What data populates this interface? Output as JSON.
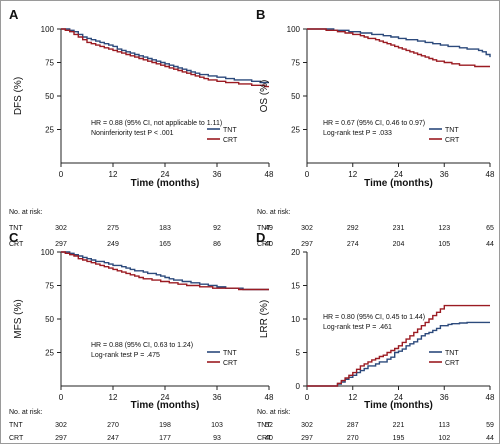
{
  "palette": {
    "tnt": "#2c4a7c",
    "crt": "#9b1b22",
    "axis": "#222222",
    "frame": "#9a9a9a"
  },
  "risk_header": "No. at risk:",
  "legend_labels": [
    "TNT",
    "CRT"
  ],
  "chart_data": [
    {
      "type": "line",
      "panel": "A",
      "ylabel": "DFS (%)",
      "xlabel": "Time (months)",
      "xlim": [
        0,
        48
      ],
      "ylim": [
        0,
        100
      ],
      "x_ticks": [
        "0",
        "12",
        "24",
        "36",
        "48"
      ],
      "y_ticks": [
        "25",
        "50",
        "75",
        "100"
      ],
      "annotations": [
        "HR = 0.88 (95% CI, not applicable to 1.11)",
        "Noninferiority test P < .001"
      ],
      "legend": "bottom-right",
      "series": [
        {
          "name": "TNT",
          "x": [
            0,
            1,
            2,
            3,
            4,
            5,
            6,
            7,
            8,
            9,
            10,
            11,
            12,
            13,
            14,
            15,
            16,
            17,
            18,
            19,
            20,
            21,
            22,
            23,
            24,
            25,
            26,
            27,
            28,
            29,
            30,
            31,
            32,
            33,
            34,
            35,
            36,
            37,
            38,
            39,
            40,
            41,
            42,
            43,
            44,
            45,
            46,
            47,
            48
          ],
          "y": [
            100,
            100,
            99,
            98,
            96,
            94,
            93,
            92,
            91,
            90,
            89,
            88,
            87,
            85,
            84,
            83,
            82,
            81,
            80,
            79,
            78,
            77,
            76,
            75,
            74,
            73,
            72,
            71,
            70,
            69,
            68,
            67,
            66,
            66,
            65,
            65,
            64,
            64,
            63,
            63,
            62,
            62,
            62,
            62,
            61,
            61,
            60,
            60,
            60
          ]
        },
        {
          "name": "CRT",
          "x": [
            0,
            1,
            2,
            3,
            4,
            5,
            6,
            7,
            8,
            9,
            10,
            11,
            12,
            13,
            14,
            15,
            16,
            17,
            18,
            19,
            20,
            21,
            22,
            23,
            24,
            25,
            26,
            27,
            28,
            29,
            30,
            31,
            32,
            33,
            34,
            35,
            36,
            37,
            38,
            39,
            40,
            41,
            42,
            43,
            44,
            45,
            46,
            47,
            48
          ],
          "y": [
            100,
            99,
            98,
            96,
            94,
            92,
            90,
            89,
            88,
            87,
            86,
            85,
            84,
            83,
            82,
            81,
            80,
            79,
            78,
            77,
            76,
            75,
            74,
            73,
            72,
            71,
            70,
            69,
            68,
            67,
            66,
            65,
            64,
            63,
            62,
            62,
            61,
            61,
            60,
            60,
            60,
            59,
            59,
            59,
            58,
            58,
            58,
            57,
            57
          ]
        }
      ],
      "risk": [
        {
          "group": "TNT",
          "values": [
            "302",
            "275",
            "183",
            "92",
            "49"
          ]
        },
        {
          "group": "CRT",
          "values": [
            "297",
            "249",
            "165",
            "86",
            "40"
          ]
        }
      ]
    },
    {
      "type": "line",
      "panel": "B",
      "ylabel": "OS (%)",
      "xlabel": "Time (months)",
      "xlim": [
        0,
        48
      ],
      "ylim": [
        0,
        100
      ],
      "x_ticks": [
        "0",
        "12",
        "24",
        "36",
        "48"
      ],
      "y_ticks": [
        "25",
        "50",
        "75",
        "100"
      ],
      "annotations": [
        "HR = 0.67 (95% CI, 0.46 to 0.97)",
        "Log-rank test P = .033"
      ],
      "legend": "bottom-right",
      "series": [
        {
          "name": "TNT",
          "x": [
            0,
            1,
            2,
            3,
            4,
            5,
            6,
            7,
            8,
            9,
            10,
            11,
            12,
            13,
            14,
            15,
            16,
            17,
            18,
            19,
            20,
            21,
            22,
            23,
            24,
            25,
            26,
            27,
            28,
            29,
            30,
            31,
            32,
            33,
            34,
            35,
            36,
            37,
            38,
            39,
            40,
            41,
            42,
            43,
            44,
            45,
            46,
            47,
            48
          ],
          "y": [
            100,
            100,
            100,
            100,
            100,
            100,
            100,
            99,
            99,
            99,
            99,
            98,
            98,
            98,
            97,
            97,
            97,
            96,
            96,
            96,
            95,
            95,
            94,
            94,
            93,
            93,
            92,
            92,
            92,
            91,
            91,
            90,
            90,
            89,
            89,
            88,
            88,
            87,
            87,
            87,
            86,
            86,
            85,
            85,
            85,
            84,
            83,
            81,
            79
          ]
        },
        {
          "name": "CRT",
          "x": [
            0,
            1,
            2,
            3,
            4,
            5,
            6,
            7,
            8,
            9,
            10,
            11,
            12,
            13,
            14,
            15,
            16,
            17,
            18,
            19,
            20,
            21,
            22,
            23,
            24,
            25,
            26,
            27,
            28,
            29,
            30,
            31,
            32,
            33,
            34,
            35,
            36,
            37,
            38,
            39,
            40,
            41,
            42,
            43,
            44,
            45,
            46,
            47,
            48
          ],
          "y": [
            100,
            100,
            100,
            100,
            100,
            99,
            99,
            99,
            98,
            98,
            97,
            97,
            96,
            96,
            95,
            94,
            93,
            93,
            92,
            91,
            90,
            89,
            88,
            87,
            86,
            85,
            84,
            83,
            82,
            81,
            80,
            79,
            78,
            77,
            76,
            76,
            75,
            75,
            74,
            74,
            73,
            73,
            73,
            73,
            72,
            72,
            72,
            72,
            72
          ]
        }
      ],
      "risk": [
        {
          "group": "TNT",
          "values": [
            "302",
            "292",
            "231",
            "123",
            "65"
          ]
        },
        {
          "group": "CRT",
          "values": [
            "297",
            "274",
            "204",
            "105",
            "44"
          ]
        }
      ]
    },
    {
      "type": "line",
      "panel": "C",
      "ylabel": "MFS (%)",
      "xlabel": "Time (months)",
      "xlim": [
        0,
        48
      ],
      "ylim": [
        0,
        100
      ],
      "x_ticks": [
        "0",
        "12",
        "24",
        "36",
        "48"
      ],
      "y_ticks": [
        "25",
        "50",
        "75",
        "100"
      ],
      "annotations": [
        "HR = 0.88 (95% CI, 0.63 to 1.24)",
        "Log-rank test P = .475"
      ],
      "legend": "bottom-right",
      "series": [
        {
          "name": "TNT",
          "x": [
            0,
            1,
            2,
            3,
            4,
            5,
            6,
            7,
            8,
            9,
            10,
            11,
            12,
            13,
            14,
            15,
            16,
            17,
            18,
            19,
            20,
            21,
            22,
            23,
            24,
            25,
            26,
            27,
            28,
            29,
            30,
            31,
            32,
            33,
            34,
            35,
            36,
            37,
            38,
            39,
            40,
            41,
            42,
            43,
            44,
            45,
            46,
            47,
            48
          ],
          "y": [
            100,
            100,
            99,
            98,
            97,
            96,
            95,
            94,
            93,
            93,
            92,
            91,
            90,
            90,
            89,
            88,
            87,
            86,
            86,
            85,
            84,
            84,
            83,
            82,
            81,
            80,
            79,
            79,
            78,
            78,
            77,
            77,
            76,
            76,
            75,
            75,
            74,
            74,
            73,
            73,
            73,
            73,
            72,
            72,
            72,
            72,
            72,
            72,
            72
          ]
        },
        {
          "name": "CRT",
          "x": [
            0,
            1,
            2,
            3,
            4,
            5,
            6,
            7,
            8,
            9,
            10,
            11,
            12,
            13,
            14,
            15,
            16,
            17,
            18,
            19,
            20,
            21,
            22,
            23,
            24,
            25,
            26,
            27,
            28,
            29,
            30,
            31,
            32,
            33,
            34,
            35,
            36,
            37,
            38,
            39,
            40,
            41,
            42,
            43,
            44,
            45,
            46,
            47,
            48
          ],
          "y": [
            100,
            99,
            98,
            97,
            95,
            94,
            93,
            92,
            91,
            90,
            89,
            88,
            87,
            86,
            85,
            84,
            83,
            82,
            81,
            80,
            80,
            79,
            79,
            78,
            78,
            77,
            77,
            76,
            76,
            75,
            75,
            75,
            74,
            74,
            74,
            73,
            73,
            73,
            73,
            73,
            73,
            72,
            72,
            72,
            72,
            72,
            72,
            72,
            72
          ]
        }
      ],
      "risk": [
        {
          "group": "TNT",
          "values": [
            "302",
            "270",
            "198",
            "103",
            "52"
          ]
        },
        {
          "group": "CRT",
          "values": [
            "297",
            "247",
            "177",
            "93",
            "40"
          ]
        }
      ]
    },
    {
      "type": "line",
      "panel": "D",
      "ylabel": "LRR (%)",
      "xlabel": "Time (months)",
      "xlim": [
        0,
        48
      ],
      "ylim": [
        0,
        20
      ],
      "x_ticks": [
        "0",
        "12",
        "24",
        "36",
        "48"
      ],
      "y_ticks": [
        "0",
        "5",
        "10",
        "15",
        "20"
      ],
      "annotations": [
        "HR = 0.80 (95% CI, 0.45 to 1.44)",
        "Log-rank test P = .461"
      ],
      "legend": "bottom-right",
      "series": [
        {
          "name": "TNT",
          "x": [
            0,
            1,
            2,
            3,
            4,
            5,
            6,
            7,
            8,
            9,
            10,
            11,
            12,
            13,
            14,
            15,
            16,
            17,
            18,
            19,
            20,
            21,
            22,
            23,
            24,
            25,
            26,
            27,
            28,
            29,
            30,
            31,
            32,
            33,
            34,
            35,
            36,
            37,
            38,
            39,
            40,
            41,
            42,
            43,
            44,
            45,
            46,
            47,
            48
          ],
          "y": [
            0,
            0,
            0,
            0,
            0,
            0,
            0,
            0,
            0.3,
            0.6,
            1.0,
            1.3,
            1.6,
            2.0,
            2.3,
            2.6,
            3.0,
            3.0,
            3.3,
            3.6,
            3.6,
            4.0,
            4.3,
            5.0,
            5.2,
            5.5,
            6.0,
            6.3,
            6.6,
            7.0,
            7.5,
            7.8,
            8.0,
            8.3,
            8.6,
            9.0,
            9.0,
            9.2,
            9.3,
            9.3,
            9.4,
            9.4,
            9.5,
            9.5,
            9.5,
            9.5,
            9.5,
            9.5,
            9.5
          ]
        },
        {
          "name": "CRT",
          "x": [
            0,
            1,
            2,
            3,
            4,
            5,
            6,
            7,
            8,
            9,
            10,
            11,
            12,
            13,
            14,
            15,
            16,
            17,
            18,
            19,
            20,
            21,
            22,
            23,
            24,
            25,
            26,
            27,
            28,
            29,
            30,
            31,
            32,
            33,
            34,
            35,
            36,
            37,
            38,
            39,
            40,
            41,
            42,
            43,
            44,
            45,
            46,
            47,
            48
          ],
          "y": [
            0,
            0,
            0,
            0,
            0,
            0,
            0,
            0,
            0.4,
            0.8,
            1.2,
            1.6,
            2.0,
            2.5,
            3.0,
            3.3,
            3.6,
            3.9,
            4.1,
            4.4,
            4.6,
            5.0,
            5.3,
            5.6,
            6.0,
            6.5,
            7.0,
            7.5,
            8.0,
            8.5,
            9.0,
            9.5,
            10.0,
            10.5,
            11.0,
            11.5,
            12.0,
            12.0,
            12.0,
            12.0,
            12.0,
            12.0,
            12.0,
            12.0,
            12.0,
            12.0,
            12.0,
            12.0,
            12.0
          ]
        }
      ],
      "risk": [
        {
          "group": "TNT",
          "values": [
            "302",
            "287",
            "221",
            "113",
            "59"
          ]
        },
        {
          "group": "CRT",
          "values": [
            "297",
            "270",
            "195",
            "102",
            "44"
          ]
        }
      ]
    }
  ]
}
